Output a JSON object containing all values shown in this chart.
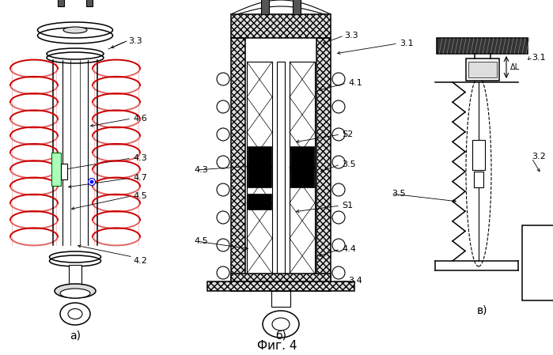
{
  "bg": "#ffffff",
  "lw": 0.8,
  "colors": {
    "black": "#000000",
    "red": "#cc0000",
    "green": "#007700",
    "blue": "#0000cc",
    "hatch_gray": "#aaaaaa",
    "white": "#ffffff",
    "dark_top": "#444444"
  },
  "fig_title": "Фиг. 4",
  "sub_labels": [
    "а)",
    "б)",
    "в)"
  ]
}
